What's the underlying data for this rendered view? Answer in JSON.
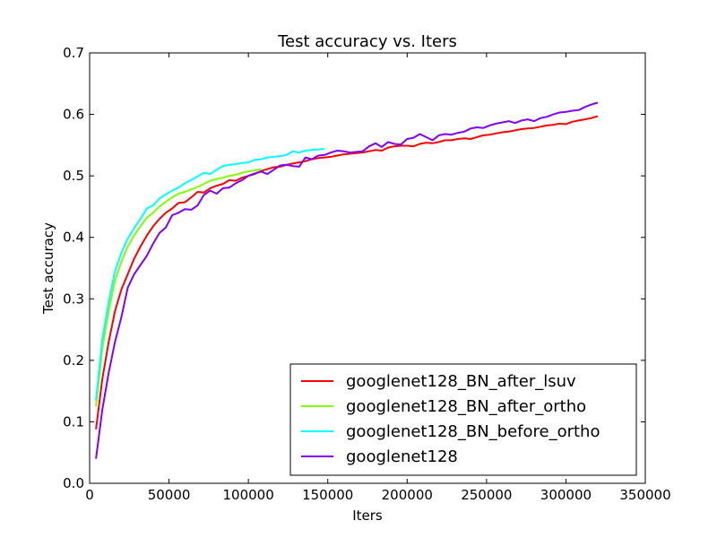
{
  "chart_data": {
    "type": "line",
    "title": "Test accuracy  vs. Iters",
    "xlabel": "Iters",
    "ylabel": "Test accuracy",
    "xlim": [
      0,
      350000
    ],
    "ylim": [
      0.0,
      0.7
    ],
    "x_ticks": [
      0,
      50000,
      100000,
      150000,
      200000,
      250000,
      300000,
      350000
    ],
    "y_ticks": [
      0.0,
      0.1,
      0.2,
      0.3,
      0.4,
      0.5,
      0.6,
      0.7
    ],
    "x_tick_labels": [
      "0",
      "50000",
      "100000",
      "150000",
      "200000",
      "250000",
      "300000",
      "350000"
    ],
    "y_tick_labels": [
      "0.0",
      "0.1",
      "0.2",
      "0.3",
      "0.4",
      "0.5",
      "0.6",
      "0.7"
    ],
    "grid": false,
    "legend_position": "bottom-right",
    "series": [
      {
        "name": "googlenet128_BN_after_lsuv",
        "color": "#ff0000",
        "points": [
          [
            4000,
            0.088
          ],
          [
            8000,
            0.17
          ],
          [
            12000,
            0.23
          ],
          [
            16000,
            0.28
          ],
          [
            20000,
            0.315
          ],
          [
            24000,
            0.34
          ],
          [
            28000,
            0.365
          ],
          [
            32000,
            0.385
          ],
          [
            36000,
            0.403
          ],
          [
            40000,
            0.418
          ],
          [
            44000,
            0.43
          ],
          [
            48000,
            0.44
          ],
          [
            52000,
            0.447
          ],
          [
            56000,
            0.456
          ],
          [
            60000,
            0.457
          ],
          [
            64000,
            0.465
          ],
          [
            68000,
            0.474
          ],
          [
            72000,
            0.473
          ],
          [
            76000,
            0.48
          ],
          [
            80000,
            0.484
          ],
          [
            84000,
            0.487
          ],
          [
            88000,
            0.493
          ],
          [
            92000,
            0.492
          ],
          [
            96000,
            0.497
          ],
          [
            100000,
            0.5
          ],
          [
            104000,
            0.503
          ],
          [
            108000,
            0.508
          ],
          [
            112000,
            0.511
          ],
          [
            116000,
            0.514
          ],
          [
            120000,
            0.515
          ],
          [
            124000,
            0.518
          ],
          [
            128000,
            0.52
          ],
          [
            132000,
            0.522
          ],
          [
            136000,
            0.524
          ],
          [
            140000,
            0.527
          ],
          [
            144000,
            0.529
          ],
          [
            148000,
            0.53
          ],
          [
            152000,
            0.531
          ],
          [
            156000,
            0.533
          ],
          [
            160000,
            0.535
          ],
          [
            164000,
            0.536
          ],
          [
            168000,
            0.537
          ],
          [
            172000,
            0.538
          ],
          [
            176000,
            0.54
          ],
          [
            180000,
            0.542
          ],
          [
            184000,
            0.541
          ],
          [
            188000,
            0.546
          ],
          [
            192000,
            0.548
          ],
          [
            196000,
            0.549
          ],
          [
            200000,
            0.549
          ],
          [
            204000,
            0.548
          ],
          [
            208000,
            0.552
          ],
          [
            212000,
            0.554
          ],
          [
            216000,
            0.553
          ],
          [
            220000,
            0.555
          ],
          [
            224000,
            0.558
          ],
          [
            228000,
            0.558
          ],
          [
            232000,
            0.56
          ],
          [
            236000,
            0.561
          ],
          [
            240000,
            0.56
          ],
          [
            244000,
            0.563
          ],
          [
            248000,
            0.566
          ],
          [
            252000,
            0.567
          ],
          [
            256000,
            0.569
          ],
          [
            260000,
            0.571
          ],
          [
            264000,
            0.572
          ],
          [
            268000,
            0.574
          ],
          [
            272000,
            0.576
          ],
          [
            276000,
            0.577
          ],
          [
            280000,
            0.578
          ],
          [
            284000,
            0.58
          ],
          [
            288000,
            0.582
          ],
          [
            292000,
            0.583
          ],
          [
            296000,
            0.585
          ],
          [
            300000,
            0.584
          ],
          [
            304000,
            0.588
          ],
          [
            308000,
            0.59
          ],
          [
            312000,
            0.592
          ],
          [
            316000,
            0.594
          ],
          [
            320000,
            0.597
          ]
        ]
      },
      {
        "name": "googlenet128_BN_after_ortho",
        "color": "#80ff00",
        "points": [
          [
            4000,
            0.125
          ],
          [
            8000,
            0.22
          ],
          [
            12000,
            0.28
          ],
          [
            16000,
            0.33
          ],
          [
            20000,
            0.36
          ],
          [
            24000,
            0.385
          ],
          [
            28000,
            0.403
          ],
          [
            32000,
            0.418
          ],
          [
            36000,
            0.432
          ],
          [
            40000,
            0.44
          ],
          [
            44000,
            0.45
          ],
          [
            48000,
            0.458
          ],
          [
            52000,
            0.465
          ],
          [
            56000,
            0.471
          ],
          [
            60000,
            0.474
          ],
          [
            64000,
            0.478
          ],
          [
            68000,
            0.482
          ],
          [
            72000,
            0.487
          ],
          [
            76000,
            0.492
          ],
          [
            80000,
            0.495
          ],
          [
            84000,
            0.497
          ],
          [
            88000,
            0.5
          ],
          [
            92000,
            0.502
          ],
          [
            96000,
            0.505
          ],
          [
            100000,
            0.507
          ],
          [
            104000,
            0.509
          ],
          [
            108000,
            0.511
          ]
        ]
      },
      {
        "name": "googlenet128_BN_before_ortho",
        "color": "#00ffff",
        "points": [
          [
            4000,
            0.135
          ],
          [
            8000,
            0.235
          ],
          [
            12000,
            0.295
          ],
          [
            16000,
            0.345
          ],
          [
            20000,
            0.375
          ],
          [
            24000,
            0.398
          ],
          [
            28000,
            0.415
          ],
          [
            32000,
            0.43
          ],
          [
            36000,
            0.447
          ],
          [
            40000,
            0.452
          ],
          [
            44000,
            0.463
          ],
          [
            48000,
            0.47
          ],
          [
            52000,
            0.476
          ],
          [
            56000,
            0.481
          ],
          [
            60000,
            0.488
          ],
          [
            64000,
            0.493
          ],
          [
            68000,
            0.499
          ],
          [
            72000,
            0.505
          ],
          [
            76000,
            0.503
          ],
          [
            80000,
            0.51
          ],
          [
            84000,
            0.516
          ],
          [
            88000,
            0.518
          ],
          [
            92000,
            0.519
          ],
          [
            96000,
            0.521
          ],
          [
            100000,
            0.522
          ],
          [
            104000,
            0.526
          ],
          [
            108000,
            0.527
          ],
          [
            112000,
            0.53
          ],
          [
            116000,
            0.531
          ],
          [
            120000,
            0.532
          ],
          [
            124000,
            0.534
          ],
          [
            128000,
            0.54
          ],
          [
            132000,
            0.538
          ],
          [
            136000,
            0.541
          ],
          [
            140000,
            0.542
          ],
          [
            144000,
            0.543
          ],
          [
            148000,
            0.544
          ]
        ]
      },
      {
        "name": "googlenet128",
        "color": "#8000ff",
        "points": [
          [
            4000,
            0.04
          ],
          [
            8000,
            0.12
          ],
          [
            12000,
            0.18
          ],
          [
            16000,
            0.23
          ],
          [
            20000,
            0.27
          ],
          [
            24000,
            0.318
          ],
          [
            28000,
            0.34
          ],
          [
            32000,
            0.355
          ],
          [
            36000,
            0.37
          ],
          [
            40000,
            0.39
          ],
          [
            44000,
            0.407
          ],
          [
            48000,
            0.416
          ],
          [
            52000,
            0.436
          ],
          [
            56000,
            0.44
          ],
          [
            60000,
            0.446
          ],
          [
            64000,
            0.445
          ],
          [
            68000,
            0.452
          ],
          [
            72000,
            0.469
          ],
          [
            76000,
            0.476
          ],
          [
            80000,
            0.471
          ],
          [
            84000,
            0.48
          ],
          [
            88000,
            0.481
          ],
          [
            92000,
            0.488
          ],
          [
            96000,
            0.493
          ],
          [
            100000,
            0.5
          ],
          [
            104000,
            0.504
          ],
          [
            108000,
            0.507
          ],
          [
            112000,
            0.503
          ],
          [
            116000,
            0.51
          ],
          [
            120000,
            0.517
          ],
          [
            124000,
            0.518
          ],
          [
            128000,
            0.516
          ],
          [
            132000,
            0.515
          ],
          [
            136000,
            0.53
          ],
          [
            140000,
            0.527
          ],
          [
            144000,
            0.533
          ],
          [
            148000,
            0.534
          ],
          [
            152000,
            0.538
          ],
          [
            156000,
            0.541
          ],
          [
            160000,
            0.54
          ],
          [
            164000,
            0.538
          ],
          [
            168000,
            0.539
          ],
          [
            172000,
            0.54
          ],
          [
            176000,
            0.548
          ],
          [
            180000,
            0.553
          ],
          [
            184000,
            0.547
          ],
          [
            188000,
            0.555
          ],
          [
            192000,
            0.552
          ],
          [
            196000,
            0.551
          ],
          [
            200000,
            0.56
          ],
          [
            204000,
            0.562
          ],
          [
            208000,
            0.568
          ],
          [
            212000,
            0.563
          ],
          [
            216000,
            0.558
          ],
          [
            220000,
            0.566
          ],
          [
            224000,
            0.568
          ],
          [
            228000,
            0.567
          ],
          [
            232000,
            0.57
          ],
          [
            236000,
            0.572
          ],
          [
            240000,
            0.577
          ],
          [
            244000,
            0.579
          ],
          [
            248000,
            0.578
          ],
          [
            252000,
            0.582
          ],
          [
            256000,
            0.585
          ],
          [
            260000,
            0.587
          ],
          [
            264000,
            0.589
          ],
          [
            268000,
            0.586
          ],
          [
            272000,
            0.59
          ],
          [
            276000,
            0.592
          ],
          [
            280000,
            0.589
          ],
          [
            284000,
            0.594
          ],
          [
            288000,
            0.596
          ],
          [
            292000,
            0.6
          ],
          [
            296000,
            0.603
          ],
          [
            300000,
            0.604
          ],
          [
            304000,
            0.606
          ],
          [
            308000,
            0.607
          ],
          [
            312000,
            0.612
          ],
          [
            316000,
            0.616
          ],
          [
            320000,
            0.619
          ]
        ]
      }
    ]
  }
}
